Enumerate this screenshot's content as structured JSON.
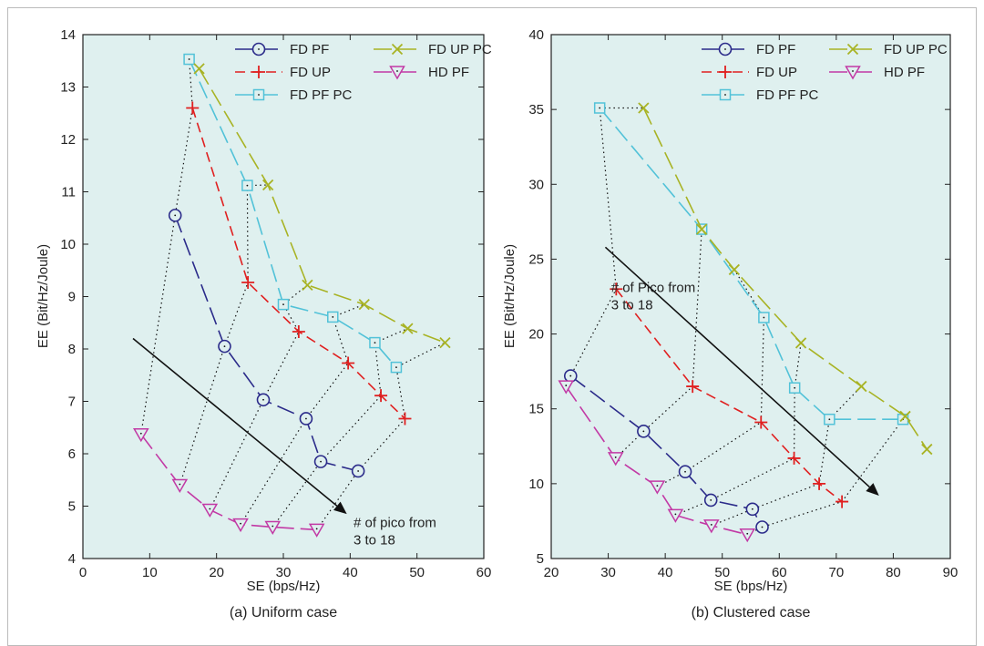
{
  "colors": {
    "plot_bg": "#dff0ef",
    "FD PF": "#2b2b8a",
    "FD UP": "#e02020",
    "FD PF PC": "#52c2d8",
    "FD UP PC": "#a8b324",
    "HD PF": "#c239a5",
    "arrow": "#111111",
    "connector": "#111111"
  },
  "chart_data": [
    {
      "type": "line",
      "caption": "(a) Uniform case",
      "xlabel": "SE (bps/Hz)",
      "ylabel": "EE (Bit/Hz/Joule)",
      "xlim": [
        0,
        60
      ],
      "ylim": [
        4,
        14
      ],
      "xticks": [
        0,
        10,
        20,
        30,
        40,
        50,
        60
      ],
      "yticks": [
        4,
        5,
        6,
        7,
        8,
        9,
        10,
        11,
        12,
        13,
        14
      ],
      "grid": false,
      "legend_position": "top",
      "annotation": {
        "lines": [
          "# of pico from",
          "3 to 18"
        ],
        "arrow_from": [
          7.5,
          8.2
        ],
        "arrow_to": [
          39.5,
          4.85
        ],
        "text_at": [
          40.5,
          4.6
        ]
      },
      "series": [
        {
          "name": "FD PF",
          "marker": "circle",
          "dash": "long",
          "points": [
            [
              13.8,
              10.55
            ],
            [
              21.2,
              8.05
            ],
            [
              27,
              7.03
            ],
            [
              33.4,
              6.67
            ],
            [
              35.6,
              5.85
            ],
            [
              41.2,
              5.67
            ]
          ]
        },
        {
          "name": "FD UP",
          "marker": "plus",
          "dash": "dash",
          "points": [
            [
              16.4,
              12.6
            ],
            [
              24.7,
              9.27
            ],
            [
              32.3,
              8.33
            ],
            [
              39.7,
              7.73
            ],
            [
              44.6,
              7.11
            ],
            [
              48.2,
              6.67
            ]
          ]
        },
        {
          "name": "FD PF PC",
          "marker": "square",
          "dash": "long",
          "points": [
            [
              15.9,
              13.53
            ],
            [
              24.6,
              11.12
            ],
            [
              30,
              8.85
            ],
            [
              37.4,
              8.61
            ],
            [
              43.7,
              8.12
            ],
            [
              46.9,
              7.65
            ]
          ]
        },
        {
          "name": "FD UP PC",
          "marker": "x",
          "dash": "long",
          "points": [
            [
              17.4,
              13.35
            ],
            [
              27.7,
              11.13
            ],
            [
              33.6,
              9.22
            ],
            [
              42.1,
              8.85
            ],
            [
              48.6,
              8.39
            ],
            [
              54.2,
              8.12
            ]
          ]
        },
        {
          "name": "HD PF",
          "marker": "triangle",
          "dash": "long",
          "points": [
            [
              8.7,
              6.37
            ],
            [
              14.5,
              5.4
            ],
            [
              19,
              4.93
            ],
            [
              23.6,
              4.65
            ],
            [
              28.4,
              4.6
            ],
            [
              35,
              4.55
            ]
          ]
        }
      ]
    },
    {
      "type": "line",
      "caption": "(b) Clustered case",
      "xlabel": "SE (bps/Hz)",
      "ylabel": "EE (Bit/Hz/Joule)",
      "xlim": [
        20,
        90
      ],
      "ylim": [
        5,
        40
      ],
      "xticks": [
        20,
        30,
        40,
        50,
        60,
        70,
        80,
        90
      ],
      "yticks": [
        5,
        10,
        15,
        20,
        25,
        30,
        35,
        40
      ],
      "grid": false,
      "legend_position": "top",
      "annotation": {
        "lines": [
          "# of Pico from",
          "3 to 18"
        ],
        "arrow_from": [
          29.5,
          25.8
        ],
        "arrow_to": [
          77.5,
          9.2
        ],
        "text_at": [
          30.5,
          22.8
        ]
      },
      "series": [
        {
          "name": "FD PF",
          "marker": "circle",
          "dash": "long",
          "points": [
            [
              23.4,
              17.2
            ],
            [
              36.2,
              13.5
            ],
            [
              43.5,
              10.8
            ],
            [
              48,
              8.9
            ],
            [
              55.3,
              8.3
            ],
            [
              57,
              7.1
            ]
          ]
        },
        {
          "name": "FD UP",
          "marker": "plus",
          "dash": "dash",
          "points": [
            [
              31.4,
              23
            ],
            [
              44.8,
              16.5
            ],
            [
              56.8,
              14.1
            ],
            [
              62.6,
              11.7
            ],
            [
              67,
              10
            ],
            [
              71,
              8.8
            ]
          ]
        },
        {
          "name": "FD PF PC",
          "marker": "square",
          "dash": "long",
          "points": [
            [
              28.5,
              35.1
            ],
            [
              46.4,
              27
            ],
            [
              57.3,
              21.1
            ],
            [
              62.7,
              16.4
            ],
            [
              68.8,
              14.3
            ],
            [
              81.7,
              14.3
            ]
          ]
        },
        {
          "name": "FD UP PC",
          "marker": "x",
          "dash": "long",
          "points": [
            [
              36.2,
              35.1
            ],
            [
              46.4,
              27
            ],
            [
              52.1,
              24.3
            ],
            [
              63.8,
              19.4
            ],
            [
              74.4,
              16.5
            ],
            [
              82.1,
              14.5
            ],
            [
              85.9,
              12.3
            ]
          ]
        },
        {
          "name": "HD PF",
          "marker": "triangle",
          "dash": "long",
          "points": [
            [
              22.6,
              16.5
            ],
            [
              31.3,
              11.7
            ],
            [
              38.6,
              9.8
            ],
            [
              41.8,
              7.9
            ],
            [
              48.1,
              7.2
            ],
            [
              54.4,
              6.6
            ]
          ]
        }
      ]
    }
  ]
}
